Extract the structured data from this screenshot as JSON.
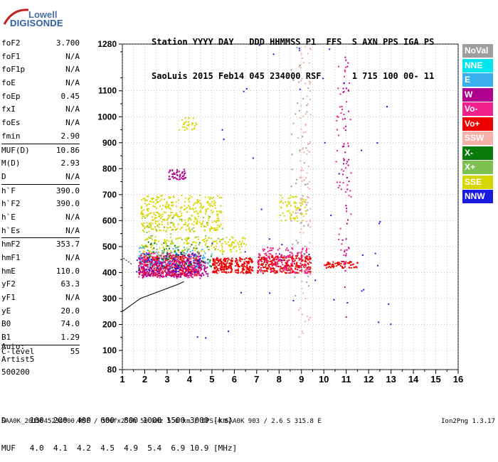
{
  "logo": {
    "line1": "Lowell",
    "line2": "DIGISONDE"
  },
  "header": {
    "line1": "Station YYYY DAY   DDD HHMMSS P1  FFS  S AXN PPS IGA PS",
    "line2": "SaoLuis 2015 Feb14 045 234000 RSF      1 715 100 00- 11"
  },
  "params": [
    {
      "label": "foF2",
      "value": "3.700"
    },
    {
      "label": "foF1",
      "value": "N/A"
    },
    {
      "label": "foF1p",
      "value": "N/A"
    },
    {
      "label": "foE",
      "value": "N/A"
    },
    {
      "label": "foEp",
      "value": "0.45"
    },
    {
      "label": "fxI",
      "value": "N/A"
    },
    {
      "label": "foEs",
      "value": "N/A"
    },
    {
      "label": "fmin",
      "value": "2.90"
    },
    {
      "label": "MUF(D)",
      "value": "10.86"
    },
    {
      "label": "M(D)",
      "value": "2.93"
    },
    {
      "label": "D",
      "value": "N/A"
    },
    {
      "label": "h`F",
      "value": "390.0"
    },
    {
      "label": "h`F2",
      "value": "390.0"
    },
    {
      "label": "h`E",
      "value": "N/A"
    },
    {
      "label": "h`Es",
      "value": "N/A"
    },
    {
      "label": "hmF2",
      "value": "353.7"
    },
    {
      "label": "hmF1",
      "value": "N/A"
    },
    {
      "label": "hmE",
      "value": "110.0"
    },
    {
      "label": "yF2",
      "value": "63.3"
    },
    {
      "label": "yF1",
      "value": "N/A"
    },
    {
      "label": "yE",
      "value": "20.0"
    },
    {
      "label": "B0",
      "value": "74.0"
    },
    {
      "label": "B1",
      "value": "1.29"
    },
    {
      "label": "C-level",
      "value": "55"
    }
  ],
  "auto": {
    "line1": "Auto:",
    "line2": "Artist5",
    "line3": "500200"
  },
  "footer": {
    "d_line": "D     100  200  400  600  800 1000 1500 3000 [km]",
    "muf_line": "MUF   4.0  4.1  4.2  4.5  4.9  5.4  6.9 10.9 [MHz]"
  },
  "bottom": {
    "file_info": "SAA0K_2015045234000.RSF / 300fx256h 50 kHz 5.0 km / DPS-4 SAA0K 903 / 2.6 S 315.8 E",
    "version": "Ion2Png 1.3.17"
  },
  "legend": [
    {
      "label": "NoVal",
      "color": "#9e9e9e"
    },
    {
      "label": "NNE",
      "color": "#00e5ee"
    },
    {
      "label": "E",
      "color": "#3ab0ee"
    },
    {
      "label": "W",
      "color": "#b0008e"
    },
    {
      "label": "Vo-",
      "color": "#f0208c"
    },
    {
      "label": "Vo+",
      "color": "#ee0000"
    },
    {
      "label": "SSW",
      "color": "#f5b0a8"
    },
    {
      "label": "X-",
      "color": "#0a7a0a"
    },
    {
      "label": "X+",
      "color": "#7fbf4f"
    },
    {
      "label": "SSE",
      "color": "#d7d700"
    },
    {
      "label": "NNW",
      "color": "#1a1ae0"
    }
  ],
  "chart_data": {
    "type": "scatter",
    "title": "",
    "xlabel": "",
    "ylabel": "",
    "xlim": [
      1,
      16
    ],
    "ylim": [
      80,
      1280
    ],
    "x_ticks": [
      "1",
      "2",
      "3",
      "4",
      "5",
      "6",
      "7",
      "8",
      "9",
      "10",
      "11",
      "12",
      "13",
      "14",
      "15",
      "16"
    ],
    "y_ticks": [
      80,
      100,
      200,
      300,
      400,
      500,
      600,
      700,
      800,
      900,
      1000,
      1100,
      1280
    ],
    "grid": true,
    "series": [
      {
        "color": "#ee0000",
        "clusters": [
          {
            "x": [
              1.7,
              4.5
            ],
            "y": [
              390,
              470
            ],
            "n": 420
          },
          {
            "x": [
              5.0,
              5.9
            ],
            "y": [
              400,
              460
            ],
            "n": 160
          },
          {
            "x": [
              6.0,
              6.8
            ],
            "y": [
              400,
              460
            ],
            "n": 120
          },
          {
            "x": [
              7.0,
              9.4
            ],
            "y": [
              400,
              470
            ],
            "n": 300
          },
          {
            "x": [
              10.0,
              11.5
            ],
            "y": [
              420,
              445
            ],
            "n": 70
          }
        ]
      },
      {
        "color": "#f0208c",
        "clusters": [
          {
            "x": [
              1.7,
              4.5
            ],
            "y": [
              380,
              480
            ],
            "n": 220
          },
          {
            "x": [
              7.0,
              9.3
            ],
            "y": [
              400,
              500
            ],
            "n": 140
          },
          {
            "x": [
              10.5,
              11.2
            ],
            "y": [
              430,
              1200
            ],
            "n": 60
          }
        ]
      },
      {
        "color": "#b0008e",
        "clusters": [
          {
            "x": [
              1.7,
              4.8
            ],
            "y": [
              385,
              450
            ],
            "n": 260
          },
          {
            "x": [
              3.0,
              3.8
            ],
            "y": [
              760,
              800
            ],
            "n": 50
          },
          {
            "x": [
              10.8,
              11.1
            ],
            "y": [
              200,
              1250
            ],
            "n": 40
          }
        ]
      },
      {
        "color": "#d7d700",
        "clusters": [
          {
            "x": [
              1.8,
              5.4
            ],
            "y": [
              560,
              700
            ],
            "n": 380
          },
          {
            "x": [
              1.8,
              6.5
            ],
            "y": [
              480,
              540
            ],
            "n": 180
          },
          {
            "x": [
              3.5,
              4.3
            ],
            "y": [
              950,
              1000
            ],
            "n": 30
          },
          {
            "x": [
              8.0,
              9.2
            ],
            "y": [
              600,
              700
            ],
            "n": 70
          }
        ]
      },
      {
        "color": "#3ab0ee",
        "clusters": [
          {
            "x": [
              1.7,
              5.0
            ],
            "y": [
              420,
              500
            ],
            "n": 90
          }
        ]
      },
      {
        "color": "#1a1ae0",
        "clusters": [
          {
            "x": [
              1.6,
              4.5
            ],
            "y": [
              400,
              480
            ],
            "n": 60
          },
          {
            "x": [
              4.0,
              13.0
            ],
            "y": [
              150,
              1280
            ],
            "n": 50
          }
        ]
      },
      {
        "color": "#0a7a0a",
        "clusters": [
          {
            "x": [
              2.0,
              5.0
            ],
            "y": [
              420,
              520
            ],
            "n": 50
          }
        ]
      },
      {
        "color": "#7fbf4f",
        "clusters": [
          {
            "x": [
              1.9,
              5.5
            ],
            "y": [
              450,
              620
            ],
            "n": 60
          }
        ]
      },
      {
        "color": "#f5b0a8",
        "clusters": [
          {
            "x": [
              8.8,
              9.4
            ],
            "y": [
              150,
              1280
            ],
            "n": 110
          }
        ]
      },
      {
        "color": "#9e9e9e",
        "clusters": [
          {
            "x": [
              8.5,
              9.3
            ],
            "y": [
              300,
              1280
            ],
            "n": 50
          }
        ]
      }
    ],
    "trace_line": [
      [
        1.0,
        250
      ],
      [
        1.8,
        300
      ],
      [
        3.5,
        355
      ],
      [
        3.75,
        365
      ]
    ]
  }
}
